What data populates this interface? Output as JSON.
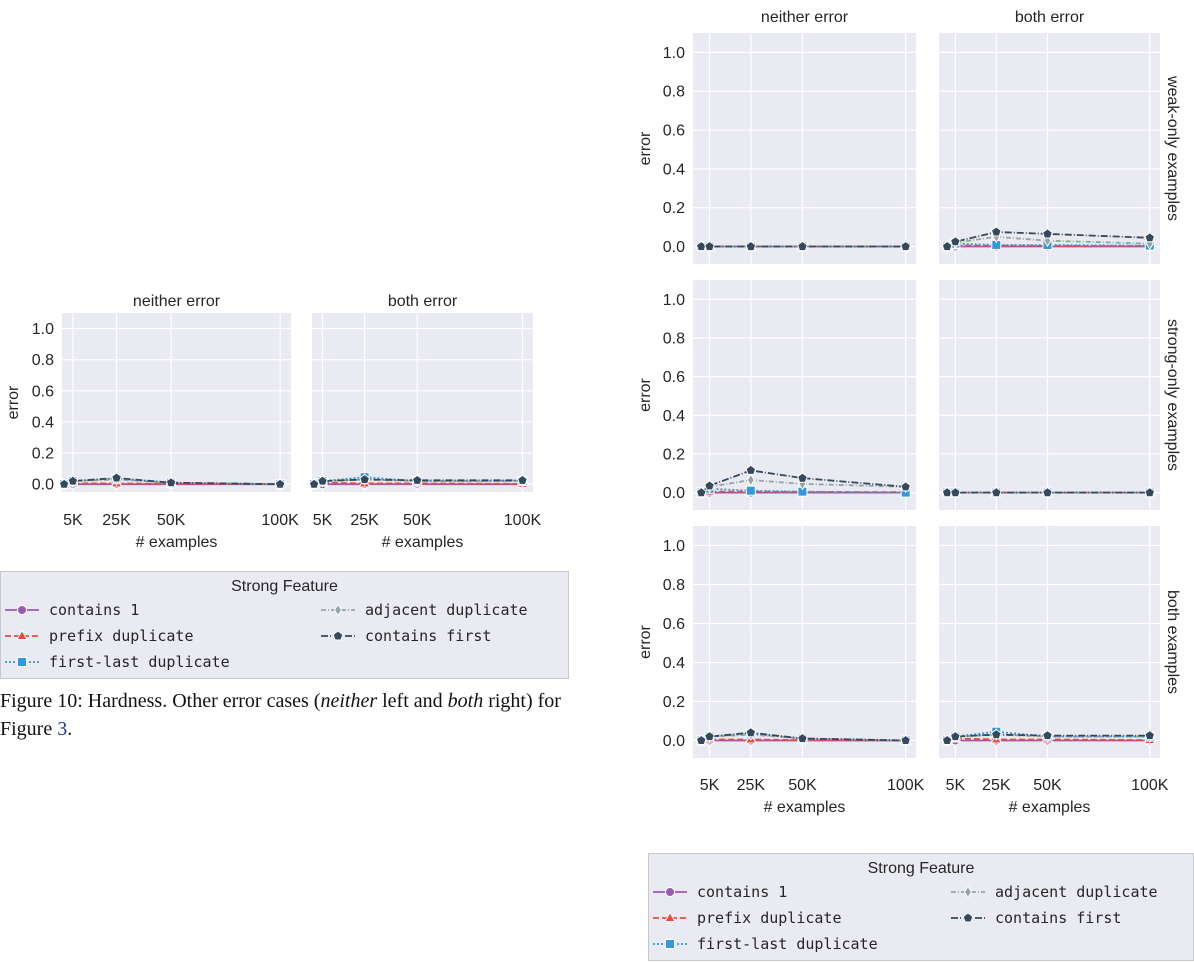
{
  "caption": {
    "prefix": "Figure 10: Hardness. Other error cases (",
    "neither": "neither",
    "mid": " left and ",
    "both": "both",
    "suffix": " right) for Figure ",
    "ref": "3",
    "end": "."
  },
  "legend": {
    "title": "Strong Feature",
    "items": [
      {
        "label": "contains 1",
        "color": "#9b59b6",
        "marker": "circle",
        "dash": ""
      },
      {
        "label": "prefix duplicate",
        "color": "#e74c3c",
        "marker": "triangle",
        "dash": "6,3"
      },
      {
        "label": "first-last duplicate",
        "color": "#3498db",
        "marker": "square",
        "dash": "2,2"
      },
      {
        "label": "adjacent duplicate",
        "color": "#95a5a6",
        "marker": "diamond",
        "dash": "5,2,1,2"
      },
      {
        "label": "contains first",
        "color": "#34495e",
        "marker": "pentagon",
        "dash": "7,2,1,2"
      }
    ]
  },
  "chart_data": [
    {
      "type": "line",
      "name": "left figure",
      "columns": [
        "neither error",
        "both error"
      ],
      "rows": [
        ""
      ],
      "ylabel": "error",
      "xlabel": "# examples",
      "x": [
        1000,
        5000,
        25000,
        50000,
        100000
      ],
      "xticks": [
        "5K",
        "25K",
        "50K",
        "100K"
      ],
      "ylim": [
        -0.05,
        1.1
      ],
      "yticks": [
        "0.0",
        "0.2",
        "0.4",
        "0.6",
        "0.8",
        "1.0"
      ],
      "grid": true,
      "panels": [
        {
          "row": 0,
          "col": 0,
          "series": [
            {
              "name": "contains 1",
              "values": [
                0,
                0,
                0,
                0,
                0
              ]
            },
            {
              "name": "prefix duplicate",
              "values": [
                0,
                0.005,
                0.005,
                0.002,
                0
              ]
            },
            {
              "name": "first-last duplicate",
              "values": [
                0,
                0.02,
                0.035,
                0.01,
                0
              ]
            },
            {
              "name": "adjacent duplicate",
              "values": [
                0,
                0.02,
                0.03,
                0.01,
                0
              ]
            },
            {
              "name": "contains first",
              "values": [
                0,
                0.02,
                0.04,
                0.01,
                0
              ]
            }
          ]
        },
        {
          "row": 0,
          "col": 1,
          "series": [
            {
              "name": "contains 1",
              "values": [
                0,
                0,
                0,
                0,
                0
              ]
            },
            {
              "name": "prefix duplicate",
              "values": [
                0,
                0.01,
                0.005,
                0.005,
                0.002
              ]
            },
            {
              "name": "first-last duplicate",
              "values": [
                0,
                0.02,
                0.045,
                0.02,
                0.02
              ]
            },
            {
              "name": "adjacent duplicate",
              "values": [
                0,
                0.02,
                0.03,
                0.02,
                0.02
              ]
            },
            {
              "name": "contains first",
              "values": [
                0,
                0.02,
                0.03,
                0.025,
                0.025
              ]
            }
          ]
        }
      ]
    },
    {
      "type": "line",
      "name": "right figure",
      "columns": [
        "neither error",
        "both error"
      ],
      "rows": [
        "weak-only examples",
        "strong-only examples",
        "both examples"
      ],
      "ylabel": "error",
      "xlabel": "# examples",
      "x": [
        1000,
        5000,
        25000,
        50000,
        100000
      ],
      "xticks": [
        "5K",
        "25K",
        "50K",
        "100K"
      ],
      "ylim": [
        -0.09,
        1.1
      ],
      "yticks": [
        "0.0",
        "0.2",
        "0.4",
        "0.6",
        "0.8",
        "1.0"
      ],
      "grid": true,
      "panels": [
        {
          "row": 0,
          "col": 0,
          "series": [
            {
              "name": "contains 1",
              "values": [
                0,
                0,
                0,
                0,
                0
              ]
            },
            {
              "name": "prefix duplicate",
              "values": [
                0,
                0,
                0,
                0,
                0
              ]
            },
            {
              "name": "first-last duplicate",
              "values": [
                0,
                0,
                0,
                0,
                0
              ]
            },
            {
              "name": "adjacent duplicate",
              "values": [
                0,
                0,
                0,
                0,
                0
              ]
            },
            {
              "name": "contains first",
              "values": [
                0,
                0,
                0,
                0,
                0
              ]
            }
          ]
        },
        {
          "row": 0,
          "col": 1,
          "series": [
            {
              "name": "contains 1",
              "values": [
                0,
                0,
                0,
                0,
                0
              ]
            },
            {
              "name": "prefix duplicate",
              "values": [
                0,
                0.005,
                0.005,
                0.003,
                0.002
              ]
            },
            {
              "name": "first-last duplicate",
              "values": [
                0,
                0.015,
                0.008,
                0.008,
                0.005
              ]
            },
            {
              "name": "adjacent duplicate",
              "values": [
                0,
                0.02,
                0.05,
                0.03,
                0.015
              ]
            },
            {
              "name": "contains first",
              "values": [
                0,
                0.025,
                0.075,
                0.065,
                0.045
              ]
            }
          ]
        },
        {
          "row": 1,
          "col": 0,
          "series": [
            {
              "name": "contains 1",
              "values": [
                0,
                0,
                0,
                0,
                0
              ]
            },
            {
              "name": "prefix duplicate",
              "values": [
                0,
                0.005,
                0.005,
                0.003,
                0.002
              ]
            },
            {
              "name": "first-last duplicate",
              "values": [
                0,
                0.02,
                0.01,
                0.005,
                0
              ]
            },
            {
              "name": "adjacent duplicate",
              "values": [
                0,
                0.03,
                0.065,
                0.045,
                0.03
              ]
            },
            {
              "name": "contains first",
              "values": [
                0,
                0.035,
                0.115,
                0.075,
                0.03
              ]
            }
          ]
        },
        {
          "row": 1,
          "col": 1,
          "series": [
            {
              "name": "contains 1",
              "values": [
                0,
                0,
                0,
                0,
                0
              ]
            },
            {
              "name": "prefix duplicate",
              "values": [
                0,
                0,
                0,
                0,
                0
              ]
            },
            {
              "name": "first-last duplicate",
              "values": [
                0,
                0,
                0,
                0,
                0
              ]
            },
            {
              "name": "adjacent duplicate",
              "values": [
                0,
                0,
                0,
                0,
                0
              ]
            },
            {
              "name": "contains first",
              "values": [
                0,
                0,
                0,
                0,
                0
              ]
            }
          ]
        },
        {
          "row": 2,
          "col": 0,
          "series": [
            {
              "name": "contains 1",
              "values": [
                0,
                0,
                0,
                0,
                0
              ]
            },
            {
              "name": "prefix duplicate",
              "values": [
                0,
                0.005,
                0.005,
                0.002,
                0
              ]
            },
            {
              "name": "first-last duplicate",
              "values": [
                0,
                0.02,
                0.035,
                0.01,
                0
              ]
            },
            {
              "name": "adjacent duplicate",
              "values": [
                0,
                0.02,
                0.03,
                0.01,
                0
              ]
            },
            {
              "name": "contains first",
              "values": [
                0,
                0.02,
                0.04,
                0.01,
                0
              ]
            }
          ]
        },
        {
          "row": 2,
          "col": 1,
          "series": [
            {
              "name": "contains 1",
              "values": [
                0,
                0,
                0,
                0,
                0
              ]
            },
            {
              "name": "prefix duplicate",
              "values": [
                0,
                0.01,
                0.005,
                0.005,
                0.002
              ]
            },
            {
              "name": "first-last duplicate",
              "values": [
                0,
                0.02,
                0.045,
                0.02,
                0.02
              ]
            },
            {
              "name": "adjacent duplicate",
              "values": [
                0,
                0.02,
                0.03,
                0.02,
                0.02
              ]
            },
            {
              "name": "contains first",
              "values": [
                0,
                0.02,
                0.03,
                0.025,
                0.025
              ]
            }
          ]
        }
      ]
    }
  ]
}
